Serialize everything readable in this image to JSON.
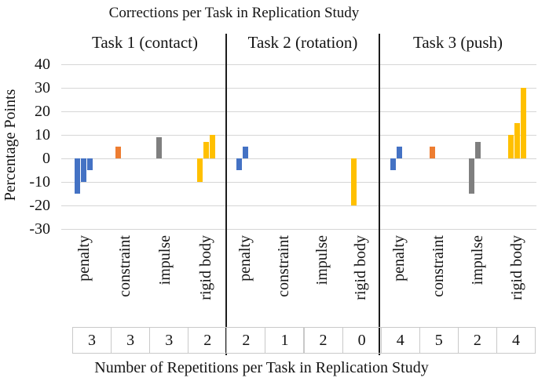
{
  "chart_data": {
    "type": "bar",
    "title": "Corrections per Task in Replication Study",
    "ylabel": "Percentage Points",
    "xlabel": "Number of Repetitions per Task in Replication Study",
    "ylim": [
      -30,
      40
    ],
    "yticks": [
      40,
      30,
      20,
      10,
      0,
      -10,
      -20,
      -30
    ],
    "grid": true,
    "legend": "none",
    "colors": {
      "penalty": "#4472C4",
      "constraint": "#ED7D31",
      "impulse": "#7F7F7F",
      "rigid body": "#FFC000",
      "divider": "#1c1c1c",
      "gridline": "#d6d6d6"
    },
    "panels": [
      {
        "label": "Task 1 (contact)",
        "categories": [
          {
            "name": "penalty",
            "color": "#4472C4",
            "corrections_pct_points": [
              -15,
              -10,
              -5
            ],
            "repetitions": 3
          },
          {
            "name": "constraint",
            "color": "#ED7D31",
            "corrections_pct_points": [
              5
            ],
            "repetitions": 3
          },
          {
            "name": "impulse",
            "color": "#7F7F7F",
            "corrections_pct_points": [
              9
            ],
            "repetitions": 3
          },
          {
            "name": "rigid body",
            "color": "#FFC000",
            "corrections_pct_points": [
              -10,
              7,
              10
            ],
            "repetitions": 2
          }
        ]
      },
      {
        "label": "Task 2 (rotation)",
        "categories": [
          {
            "name": "penalty",
            "color": "#4472C4",
            "corrections_pct_points": [
              -5,
              5
            ],
            "repetitions": 2
          },
          {
            "name": "constraint",
            "color": "#ED7D31",
            "corrections_pct_points": [],
            "repetitions": 1
          },
          {
            "name": "impulse",
            "color": "#7F7F7F",
            "corrections_pct_points": [],
            "repetitions": 2
          },
          {
            "name": "rigid body",
            "color": "#FFC000",
            "corrections_pct_points": [
              -20
            ],
            "repetitions": 0
          }
        ]
      },
      {
        "label": "Task 3 (push)",
        "categories": [
          {
            "name": "penalty",
            "color": "#4472C4",
            "corrections_pct_points": [
              -5,
              5
            ],
            "repetitions": 4
          },
          {
            "name": "constraint",
            "color": "#ED7D31",
            "corrections_pct_points": [
              5
            ],
            "repetitions": 5
          },
          {
            "name": "impulse",
            "color": "#7F7F7F",
            "corrections_pct_points": [
              -15,
              7
            ],
            "repetitions": 2
          },
          {
            "name": "rigid body",
            "color": "#FFC000",
            "corrections_pct_points": [
              10,
              15,
              30
            ],
            "repetitions": 4
          }
        ]
      }
    ],
    "repetitions_row": [
      3,
      3,
      3,
      2,
      2,
      1,
      2,
      0,
      4,
      5,
      2,
      4
    ]
  }
}
